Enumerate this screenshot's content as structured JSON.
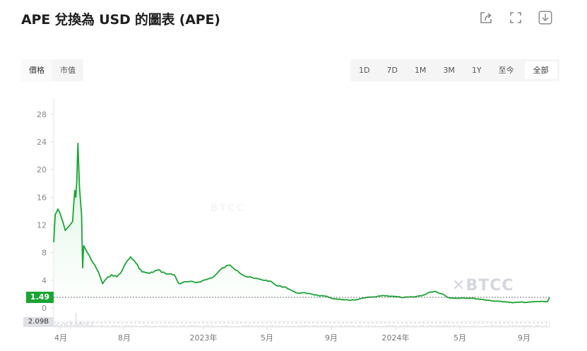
{
  "header": {
    "title": "APE 兌換為 USD 的圖表 (APE)",
    "icons": [
      "share-icon",
      "fullscreen-icon",
      "download-icon"
    ]
  },
  "metric_tabs": [
    {
      "label": "價格",
      "active": true
    },
    {
      "label": "市值",
      "active": false
    }
  ],
  "range_tabs": [
    {
      "label": "1D",
      "active": false
    },
    {
      "label": "7D",
      "active": false
    },
    {
      "label": "1M",
      "active": false
    },
    {
      "label": "3M",
      "active": false
    },
    {
      "label": "1Y",
      "active": false
    },
    {
      "label": "至今",
      "active": false
    },
    {
      "label": "全部",
      "active": true
    }
  ],
  "current_price_label": "1.49",
  "volume_label": "2.09B",
  "watermark": "BTCC",
  "colors": {
    "line": "#1aa533",
    "fill_top": "#d6f3dc",
    "price_tag": "#1aa533",
    "volume_tag": "#dfe1e6",
    "volume_bars": "#c9ccd3"
  },
  "chart_data": {
    "type": "area",
    "title": "APE 兌換為 USD 的圖表 (APE)",
    "xlabel": "",
    "ylabel": "",
    "ylim": [
      0,
      30
    ],
    "yticks": [
      0,
      4,
      8,
      12,
      16,
      20,
      24,
      28
    ],
    "xticks": [
      "4月",
      "8月",
      "2023年",
      "5月",
      "9月",
      "2024年",
      "5月",
      "9月"
    ],
    "grid": false,
    "legend": null,
    "current_price": 1.49,
    "volume_latest": "2.09B",
    "series": [
      {
        "name": "APE/USD",
        "x": [
          "2022-03-17",
          "2022-03-20",
          "2022-03-25",
          "2022-04-01",
          "2022-04-08",
          "2022-04-15",
          "2022-04-22",
          "2022-04-26",
          "2022-04-28",
          "2022-04-30",
          "2022-05-02",
          "2022-05-05",
          "2022-05-09",
          "2022-05-11",
          "2022-05-13",
          "2022-05-20",
          "2022-05-31",
          "2022-06-10",
          "2022-06-18",
          "2022-06-25",
          "2022-07-05",
          "2022-07-15",
          "2022-07-25",
          "2022-08-01",
          "2022-08-10",
          "2022-08-20",
          "2022-09-01",
          "2022-09-15",
          "2022-10-01",
          "2022-10-15",
          "2022-11-01",
          "2022-11-10",
          "2022-11-25",
          "2022-12-15",
          "2023-01-01",
          "2023-01-15",
          "2023-02-01",
          "2023-02-15",
          "2023-03-01",
          "2023-03-15",
          "2023-04-01",
          "2023-04-15",
          "2023-05-01",
          "2023-05-15",
          "2023-06-01",
          "2023-06-10",
          "2023-06-20",
          "2023-07-15",
          "2023-08-01",
          "2023-08-20",
          "2023-09-01",
          "2023-09-15",
          "2023-10-01",
          "2023-10-15",
          "2023-11-01",
          "2023-11-20",
          "2023-12-01",
          "2023-12-20",
          "2024-01-10",
          "2024-02-01",
          "2024-02-20",
          "2024-03-01",
          "2024-03-10",
          "2024-03-25",
          "2024-04-05",
          "2024-04-15",
          "2024-05-01",
          "2024-05-20",
          "2024-06-10",
          "2024-07-01",
          "2024-07-20",
          "2024-08-05",
          "2024-08-20",
          "2024-09-01",
          "2024-09-15",
          "2024-10-01",
          "2024-10-10",
          "2024-10-14"
        ],
        "values": [
          9.5,
          13.5,
          14.3,
          13.0,
          11.2,
          11.8,
          12.5,
          17.0,
          16.0,
          18.5,
          23.8,
          17.5,
          13.5,
          5.8,
          9.0,
          8.0,
          6.5,
          5.2,
          3.5,
          4.2,
          4.8,
          4.5,
          5.4,
          6.5,
          7.4,
          6.5,
          5.2,
          5.0,
          5.5,
          5.0,
          4.8,
          3.5,
          3.8,
          3.7,
          4.1,
          4.5,
          5.8,
          6.2,
          5.4,
          4.6,
          4.3,
          4.1,
          3.9,
          3.2,
          3.0,
          2.6,
          2.2,
          2.1,
          1.8,
          1.6,
          1.3,
          1.2,
          1.1,
          1.2,
          1.5,
          1.6,
          1.8,
          1.7,
          1.5,
          1.6,
          1.9,
          2.3,
          2.4,
          2.0,
          1.5,
          1.4,
          1.45,
          1.4,
          1.2,
          1.0,
          0.9,
          0.75,
          0.85,
          0.8,
          0.9,
          0.95,
          0.9,
          1.49
        ]
      }
    ]
  }
}
